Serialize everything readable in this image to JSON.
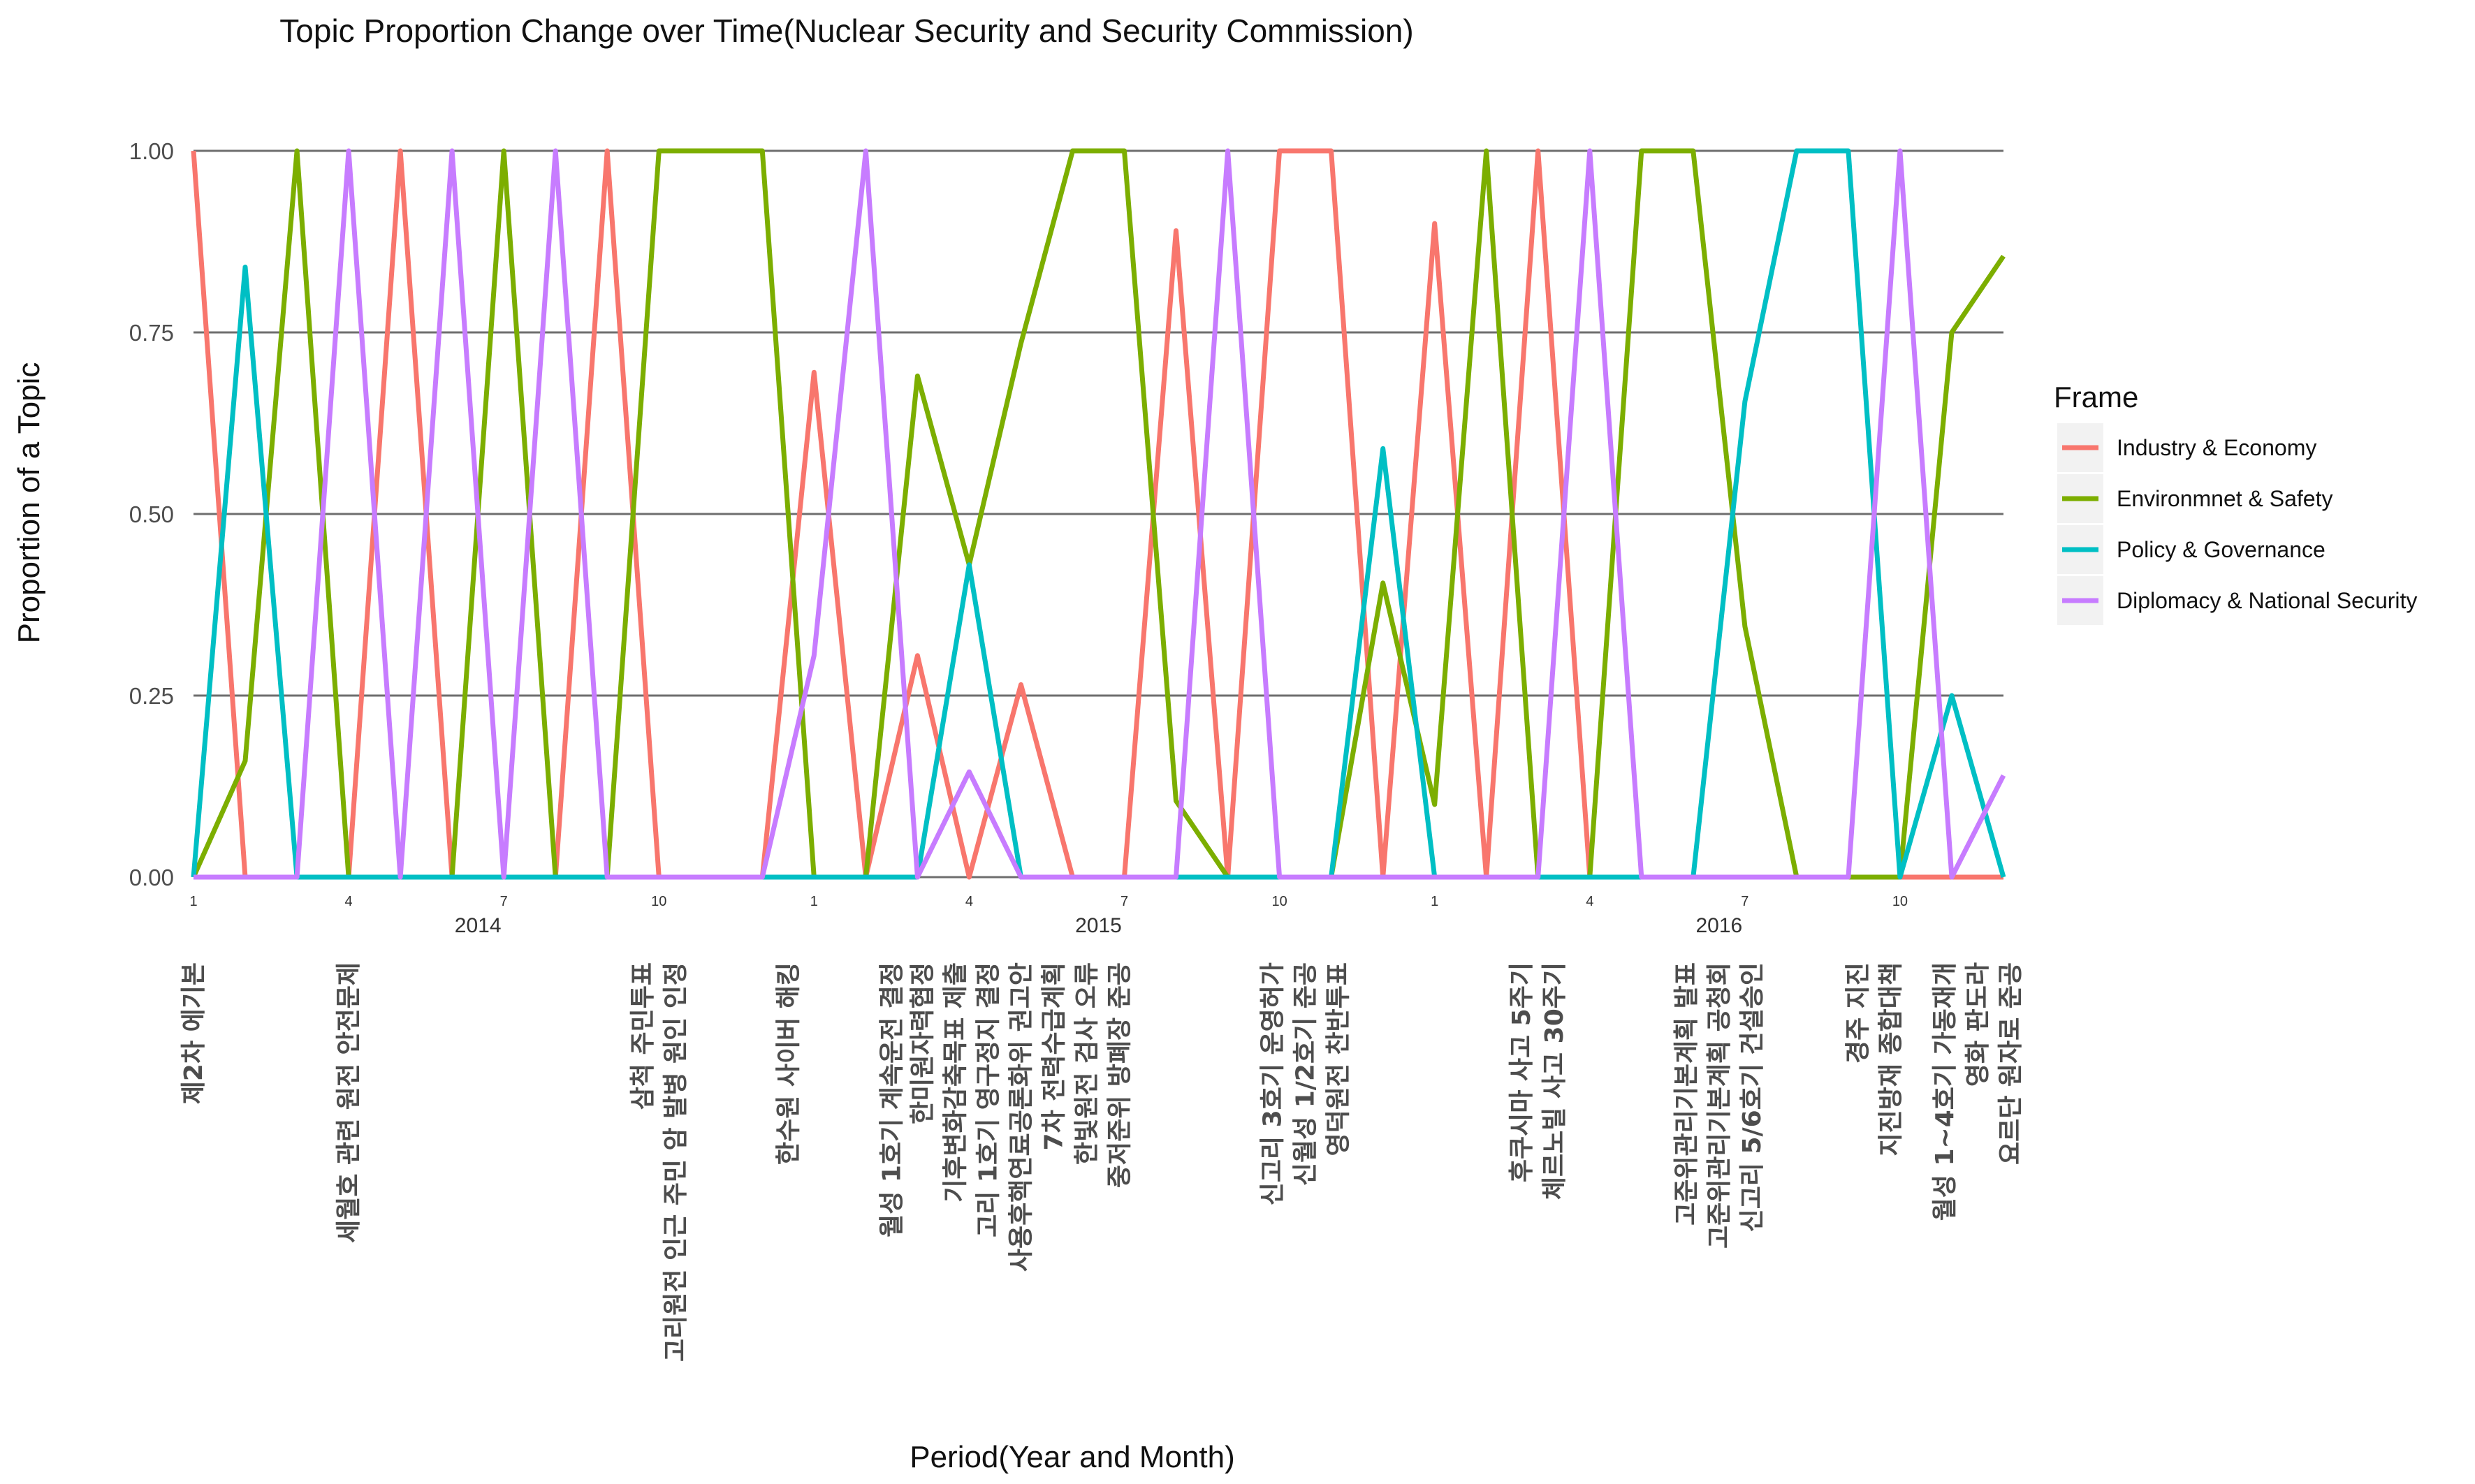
{
  "chart_data": {
    "type": "line",
    "title": "Topic Proportion Change over Time(Nuclear Security and Security Commission)",
    "xlabel": "Period(Year and Month)",
    "ylabel": "Proportion of a Topic",
    "ylim": [
      0,
      1
    ],
    "xlim": [
      1,
      36
    ],
    "y_ticks": [
      "0.00",
      "0.25",
      "0.50",
      "0.75",
      "1.00"
    ],
    "y_tick_values": [
      0,
      0.25,
      0.5,
      0.75,
      1
    ],
    "x_ticks": [
      {
        "x": 1,
        "label": "1"
      },
      {
        "x": 4,
        "label": "4"
      },
      {
        "x": 7,
        "label": "7"
      },
      {
        "x": 10,
        "label": "10"
      },
      {
        "x": 13,
        "label": "1"
      },
      {
        "x": 16,
        "label": "4"
      },
      {
        "x": 19,
        "label": "7"
      },
      {
        "x": 22,
        "label": "10"
      },
      {
        "x": 25,
        "label": "1"
      },
      {
        "x": 28,
        "label": "4"
      },
      {
        "x": 31,
        "label": "7"
      },
      {
        "x": 34,
        "label": "10"
      }
    ],
    "years": [
      {
        "x": 6.5,
        "label": "2014"
      },
      {
        "x": 18.5,
        "label": "2015"
      },
      {
        "x": 30.5,
        "label": "2016"
      }
    ],
    "grid": true,
    "legend": {
      "title": "Frame",
      "position": "right"
    },
    "x": [
      1,
      2,
      3,
      4,
      5,
      6,
      7,
      8,
      9,
      10,
      11,
      12,
      13,
      14,
      15,
      16,
      17,
      18,
      19,
      20,
      21,
      22,
      23,
      24,
      25,
      26,
      27,
      28,
      29,
      30,
      31,
      32,
      33,
      34,
      35,
      36
    ],
    "series": [
      {
        "name": "Industry & Economy",
        "color": "#F8766D",
        "values": [
          1,
          0,
          0,
          0,
          1,
          0,
          0,
          0,
          1,
          0,
          0,
          0,
          0.695,
          0,
          0.305,
          0,
          0.265,
          0,
          0,
          0.89,
          0,
          1,
          1,
          0,
          0.9,
          0,
          1,
          0,
          0,
          0,
          0,
          0,
          0,
          0,
          0,
          0
        ]
      },
      {
        "name": "Environmnet & Safety",
        "color": "#7CAE00",
        "values": [
          0,
          0.16,
          1,
          0,
          0,
          0,
          1,
          0,
          0,
          1,
          1,
          1,
          0,
          0,
          0.69,
          0.43,
          0.735,
          1,
          1,
          0.105,
          0,
          0,
          0,
          0.405,
          0.1,
          1,
          0,
          0,
          1,
          1,
          0.345,
          0,
          0,
          0,
          0.75,
          0.855
        ]
      },
      {
        "name": "Policy & Governance",
        "color": "#00BFC4",
        "values": [
          0,
          0.84,
          0,
          0,
          0,
          0,
          0,
          0,
          0,
          0,
          0,
          0,
          0,
          0,
          0,
          0.43,
          0,
          0,
          0,
          0,
          0,
          0,
          0,
          0.59,
          0,
          0,
          0,
          0,
          0,
          0,
          0.655,
          1,
          1,
          0,
          0.25,
          0
        ]
      },
      {
        "name": "Diplomacy & National Security",
        "color": "#C77CFF",
        "values": [
          0,
          0,
          0,
          1,
          0,
          1,
          0,
          1,
          0,
          0,
          0,
          0,
          0.305,
          1,
          0,
          0.145,
          0,
          0,
          0,
          0,
          1,
          0,
          0,
          0,
          0,
          0,
          0,
          1,
          0,
          0,
          0,
          0,
          0,
          1,
          0,
          0.14
        ]
      }
    ],
    "events": [
      {
        "x": 1,
        "lines": [
          "제2차 에기본"
        ]
      },
      {
        "x": 4,
        "lines": [
          "세월호 관련 원전 안전문제"
        ]
      },
      {
        "x": 10,
        "lines": [
          "삼척 주민투표",
          "고리원전 인근 주민 암 발병 원인 인정"
        ]
      },
      {
        "x": 12.5,
        "lines": [
          "한수원 사이버 해킹"
        ]
      },
      {
        "x": 14.5,
        "lines": [
          "월성 1호기 계속운전 결정"
        ]
      },
      {
        "x": 17,
        "lines": [
          "한미원자력협정",
          "기후변화감축목표 제출",
          "고리 1호기 영구정지 결정",
          "사용후핵연료공론화위 권고안",
          "7차 전력수급계획",
          "한빛원전 검사 오류",
          "중저준위 방폐장 준공"
        ]
      },
      {
        "x": 22.5,
        "lines": [
          "신고리 3호기 운영허가",
          "신월성 1/2호기 준공",
          "영덕원전 찬반투표"
        ]
      },
      {
        "x": 27,
        "lines": [
          "후쿠시마 사고 5주기",
          "체르노빌 사고 30주기"
        ]
      },
      {
        "x": 30.5,
        "lines": [
          "고준위관리기본계획 발표",
          "고준위관리기본계획 공청회",
          "신고리 5/6호기 건설승인"
        ]
      },
      {
        "x": 33.5,
        "lines": [
          "경주 지진",
          "지진방재 종합대책"
        ]
      },
      {
        "x": 35.5,
        "lines": [
          "월성 1~4호기 가동재개",
          "영화 판도라",
          "요르단 원자로 준공"
        ]
      }
    ]
  }
}
